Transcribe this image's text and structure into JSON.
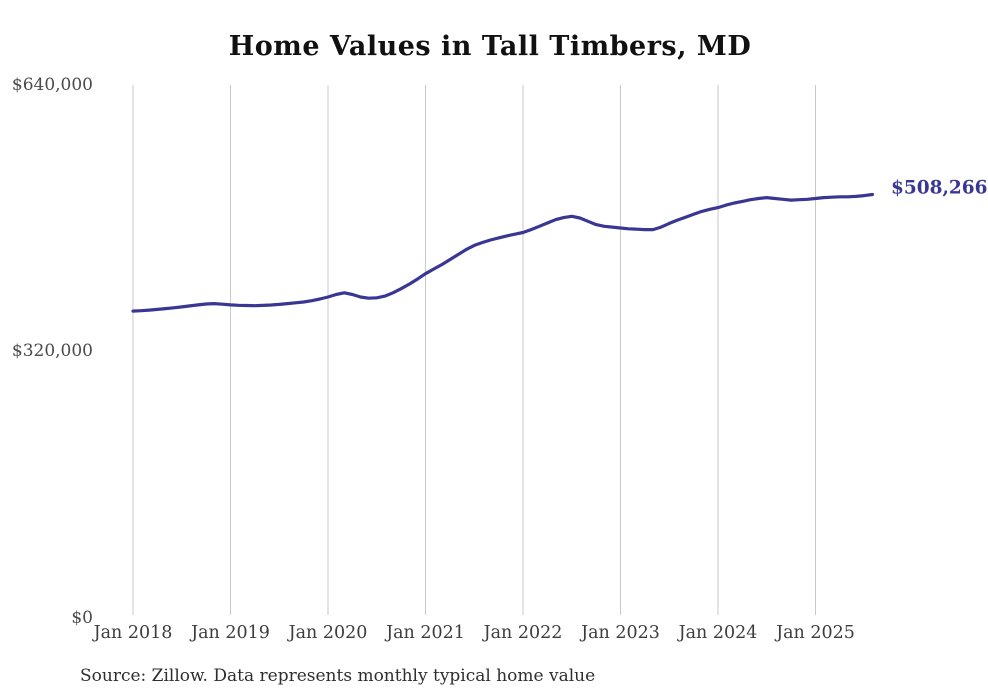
{
  "chart_data": {
    "type": "line",
    "title": "Home Values in Tall Timbers, MD",
    "xlabel": "",
    "ylabel": "",
    "x_start": "Jan 2018",
    "x_end": "Aug 2025",
    "x_step_months": 1,
    "categories": [
      "Jan 2018",
      "Jan 2019",
      "Jan 2020",
      "Jan 2021",
      "Jan 2022",
      "Jan 2023",
      "Jan 2024",
      "Jan 2025"
    ],
    "yticks": [
      "$0",
      "$320,000",
      "$640,000"
    ],
    "ylim": [
      0,
      640000
    ],
    "grid": "vertical",
    "legend": "none",
    "line_color": "#3a3694",
    "grid_color": "#c9c9c9",
    "end_label": "$508,266",
    "latest_value": 508266,
    "source": "Source: Zillow. Data represents monthly typical home value",
    "series": [
      {
        "name": "Typical home value",
        "values": [
          368000,
          368500,
          369200,
          370000,
          371000,
          372000,
          373000,
          374200,
          375400,
          376500,
          377000,
          376300,
          375500,
          375000,
          374700,
          374500,
          374800,
          375300,
          376000,
          377000,
          378000,
          379000,
          380500,
          382500,
          385000,
          388000,
          390000,
          388000,
          385000,
          383500,
          384000,
          386000,
          390000,
          395000,
          400500,
          406500,
          413000,
          418500,
          424000,
          430000,
          436000,
          442000,
          447000,
          450500,
          453500,
          456000,
          458500,
          460500,
          462500,
          466000,
          470000,
          474000,
          478000,
          480500,
          482000,
          480000,
          476000,
          472000,
          470000,
          469000,
          468000,
          467000,
          466500,
          466000,
          466000,
          469000,
          473500,
          477500,
          481000,
          484500,
          488000,
          490500,
          492500,
          495500,
          498000,
          500000,
          502000,
          503500,
          504500,
          503500,
          502500,
          501500,
          502000,
          502500,
          503500,
          504500,
          505000,
          505500,
          505500,
          506000,
          507000,
          508266
        ]
      }
    ]
  }
}
